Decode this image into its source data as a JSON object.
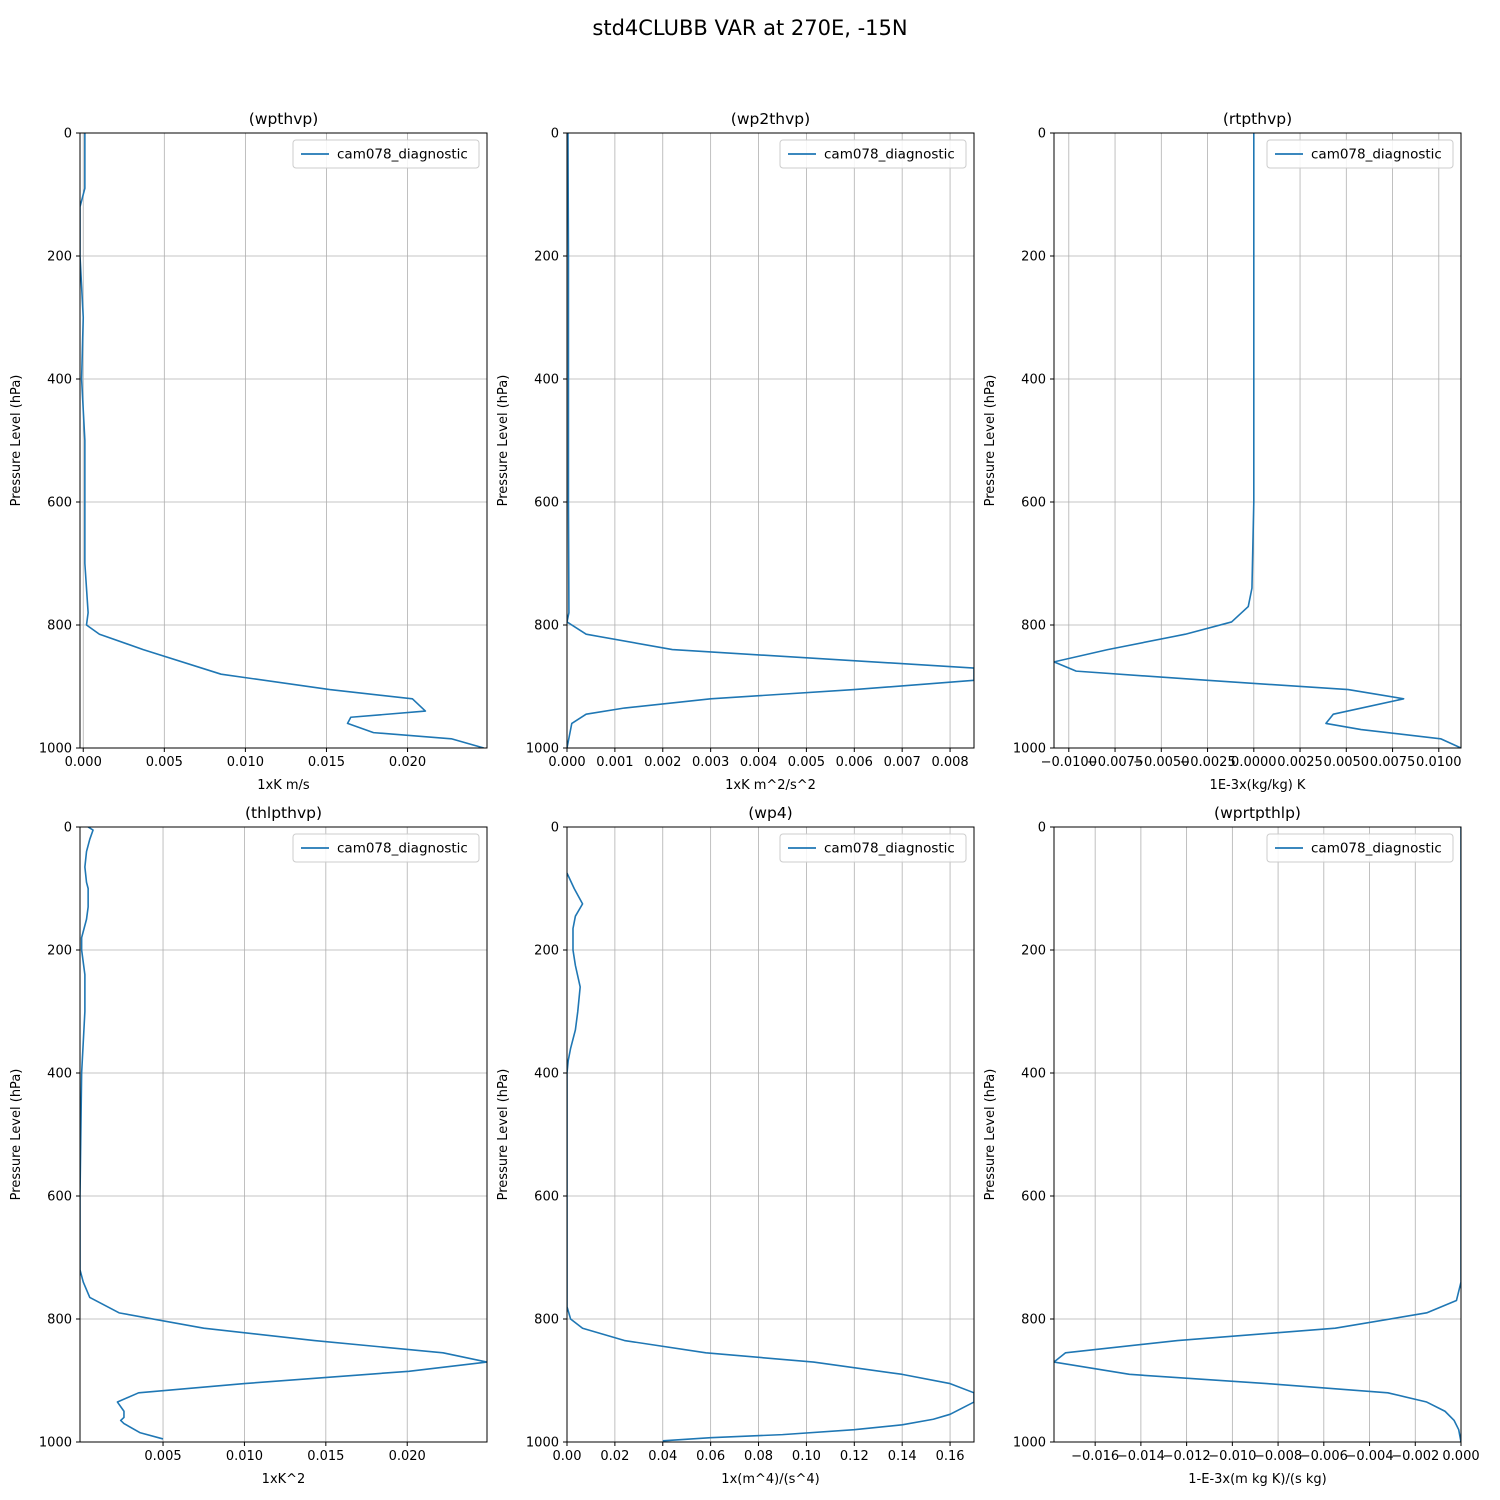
{
  "figure": {
    "title": "std4CLUBB VAR at 270E, -15N"
  },
  "style": {
    "line_color": "#1f77b4",
    "grid_color": "#b0b0b0"
  },
  "chart_data": [
    {
      "type": "line",
      "title": "(wpthvp)",
      "xlabel": "1xK m/s",
      "ylabel": "Pressure Level (hPa)",
      "xlim": [
        -0.0002,
        0.0249
      ],
      "ylim": [
        1000,
        0
      ],
      "xticks": [
        0.0,
        0.005,
        0.01,
        0.015,
        0.02
      ],
      "xtick_labels": [
        "0.000",
        "0.005",
        "0.010",
        "0.015",
        "0.020"
      ],
      "yticks": [
        0,
        200,
        400,
        600,
        800,
        1000
      ],
      "ytick_labels": [
        "0",
        "200",
        "400",
        "600",
        "800",
        "1000"
      ],
      "grid": true,
      "legend": "upper right",
      "series": [
        {
          "name": "cam078_diagnostic",
          "x": [
            0.0001,
            0.0001,
            -0.0002,
            -0.0002,
            0.0,
            -0.0001,
            0.0001,
            0.0001,
            0.0001,
            0.0003,
            0.0002,
            0.001,
            0.0037,
            0.0085,
            0.0152,
            0.0203,
            0.0211,
            0.0165,
            0.0163,
            0.0179,
            0.0227,
            0.0247
          ],
          "y": [
            0,
            90,
            120,
            200,
            300,
            400,
            500,
            600,
            700,
            780,
            800,
            815,
            840,
            880,
            905,
            920,
            940,
            950,
            960,
            975,
            985,
            1000
          ]
        }
      ]
    },
    {
      "type": "line",
      "title": "(wp2thvp)",
      "xlabel": "1xK m^2/s^2",
      "ylabel": "Pressure Level (hPa)",
      "xlim": [
        0,
        0.0085
      ],
      "ylim": [
        1000,
        0
      ],
      "xticks": [
        0.0,
        0.001,
        0.002,
        0.003,
        0.004,
        0.005,
        0.006,
        0.007,
        0.008
      ],
      "xtick_labels": [
        "0.000",
        "0.001",
        "0.002",
        "0.003",
        "0.004",
        "0.005",
        "0.006",
        "0.007",
        "0.008"
      ],
      "yticks": [
        0,
        200,
        400,
        600,
        800,
        1000
      ],
      "ytick_labels": [
        "0",
        "200",
        "400",
        "600",
        "800",
        "1000"
      ],
      "grid": true,
      "legend": "upper right",
      "series": [
        {
          "name": "cam078_diagnostic",
          "x": [
            2e-05,
            3e-05,
            3e-05,
            3e-05,
            4e-05,
            0.0,
            0.0004,
            0.0022,
            0.0085,
            0.0085,
            0.006,
            0.003,
            0.0012,
            0.0004,
            0.0001,
            0.0
          ],
          "y": [
            0,
            200,
            400,
            600,
            780,
            795,
            815,
            840,
            870,
            890,
            905,
            920,
            935,
            945,
            960,
            1000
          ]
        }
      ]
    },
    {
      "type": "line",
      "title": "(rtpthvp)",
      "xlabel": "1E-3x(kg/kg) K",
      "ylabel": "Pressure Level (hPa)",
      "xlim": [
        -0.0108,
        0.0112
      ],
      "ylim": [
        1000,
        0
      ],
      "xticks": [
        -0.01,
        -0.0075,
        -0.005,
        -0.0025,
        0.0,
        0.0025,
        0.005,
        0.0075,
        0.01
      ],
      "xtick_labels": [
        "−0.0100",
        "−0.0075",
        "−0.0050",
        "−0.0025",
        "0.0000",
        "0.0025",
        "0.0050",
        "0.0075",
        "0.0100"
      ],
      "yticks": [
        0,
        200,
        400,
        600,
        800,
        1000
      ],
      "ytick_labels": [
        "0",
        "200",
        "400",
        "600",
        "800",
        "1000"
      ],
      "grid": true,
      "legend": "upper right",
      "series": [
        {
          "name": "cam078_diagnostic",
          "x": [
            0.0,
            0.0,
            0.0,
            0.0,
            -0.0001,
            -0.0003,
            -0.0012,
            -0.0037,
            -0.0079,
            -0.0108,
            -0.0096,
            -0.0025,
            0.0051,
            0.0081,
            0.0043,
            0.0039,
            0.0058,
            0.0101,
            0.0112
          ],
          "y": [
            0,
            200,
            400,
            600,
            740,
            770,
            795,
            815,
            840,
            860,
            875,
            890,
            905,
            920,
            945,
            960,
            970,
            985,
            1000
          ]
        }
      ]
    },
    {
      "type": "line",
      "title": "(thlpthvp)",
      "xlabel": "1xK^2",
      "ylabel": "Pressure Level (hPa)",
      "xlim": [
        -0.0001,
        0.0249
      ],
      "ylim": [
        1000,
        0
      ],
      "xticks": [
        0.005,
        0.01,
        0.015,
        0.02
      ],
      "xtick_labels": [
        "0.005",
        "0.010",
        "0.015",
        "0.020"
      ],
      "yticks": [
        0,
        200,
        400,
        600,
        800,
        1000
      ],
      "ytick_labels": [
        "0",
        "200",
        "400",
        "600",
        "800",
        "1000"
      ],
      "grid": true,
      "legend": "upper right",
      "series": [
        {
          "name": "cam078_diagnostic",
          "x": [
            0.0004,
            0.0007,
            0.0005,
            0.0003,
            0.0002,
            0.0003,
            0.0004,
            0.0004,
            0.0003,
            0.0,
            0.0,
            0.0002,
            0.0002,
            0.0001,
            0.0,
            -0.0001,
            -0.0001,
            0.0001,
            0.0005,
            0.0023,
            0.0075,
            0.0143,
            0.0222,
            0.0249,
            0.0201,
            0.01,
            0.0035,
            0.0022,
            0.0026,
            0.0026,
            0.0024,
            0.0026,
            0.0036,
            0.005
          ],
          "y": [
            0,
            5,
            20,
            40,
            65,
            90,
            100,
            130,
            150,
            180,
            200,
            240,
            300,
            350,
            400,
            600,
            720,
            740,
            765,
            790,
            815,
            835,
            855,
            870,
            885,
            905,
            920,
            935,
            950,
            960,
            965,
            970,
            985,
            995
          ]
        }
      ]
    },
    {
      "type": "line",
      "title": "(wp4)",
      "xlabel": "1x(m^4)/(s^4)",
      "ylabel": "Pressure Level (hPa)",
      "xlim": [
        0,
        0.17
      ],
      "ylim": [
        1000,
        0
      ],
      "xticks": [
        0.0,
        0.02,
        0.04,
        0.06,
        0.08,
        0.1,
        0.12,
        0.14,
        0.16
      ],
      "xtick_labels": [
        "0.00",
        "0.02",
        "0.04",
        "0.06",
        "0.08",
        "0.10",
        "0.12",
        "0.14",
        "0.16"
      ],
      "yticks": [
        0,
        200,
        400,
        600,
        800,
        1000
      ],
      "ytick_labels": [
        "0",
        "200",
        "400",
        "600",
        "800",
        "1000"
      ],
      "grid": true,
      "legend": "upper right",
      "series": [
        {
          "name": "cam078_diagnostic",
          "x": [
            0.0,
            0.003,
            0.0065,
            0.0035,
            0.0025,
            0.0025,
            0.0035,
            0.0055,
            0.0045,
            0.0035,
            0.0015,
            0.0005,
            0.0,
            0.0,
            0.0,
            0.0,
            0.0015,
            0.0065,
            0.024,
            0.058,
            0.103,
            0.14,
            0.16,
            0.17,
            0.17,
            0.165,
            0.16,
            0.153,
            0.14,
            0.12,
            0.09,
            0.06,
            0.04
          ],
          "y": [
            75,
            100,
            125,
            145,
            165,
            200,
            225,
            260,
            300,
            330,
            360,
            380,
            400,
            500,
            600,
            780,
            800,
            815,
            835,
            855,
            870,
            890,
            905,
            920,
            935,
            945,
            955,
            963,
            972,
            980,
            988,
            993,
            998
          ]
        }
      ]
    },
    {
      "type": "line",
      "title": "(wprtpthlp)",
      "xlabel": "1-E-3x(m kg K)/(s kg)",
      "ylabel": "Pressure Level (hPa)",
      "xlim": [
        -0.0178,
        0.0
      ],
      "ylim": [
        1000,
        0
      ],
      "xticks": [
        -0.016,
        -0.014,
        -0.012,
        -0.01,
        -0.008,
        -0.006,
        -0.004,
        -0.002,
        0.0
      ],
      "xtick_labels": [
        "−0.016",
        "−0.014",
        "−0.012",
        "−0.010",
        "−0.008",
        "−0.006",
        "−0.004",
        "−0.002",
        "0.000"
      ],
      "yticks": [
        0,
        200,
        400,
        600,
        800,
        1000
      ],
      "ytick_labels": [
        "0",
        "200",
        "400",
        "600",
        "800",
        "1000"
      ],
      "grid": true,
      "legend": "upper right",
      "series": [
        {
          "name": "cam078_diagnostic",
          "x": [
            0.0,
            0.0,
            0.0,
            0.0,
            -0.0002,
            -0.0015,
            -0.0055,
            -0.0124,
            -0.0173,
            -0.0178,
            -0.0145,
            -0.0085,
            -0.0032,
            -0.0015,
            -0.0007,
            -0.0003,
            -0.0001,
            0.0
          ],
          "y": [
            0,
            200,
            400,
            740,
            770,
            790,
            815,
            835,
            855,
            870,
            890,
            905,
            920,
            935,
            950,
            965,
            980,
            1000
          ]
        }
      ]
    }
  ]
}
